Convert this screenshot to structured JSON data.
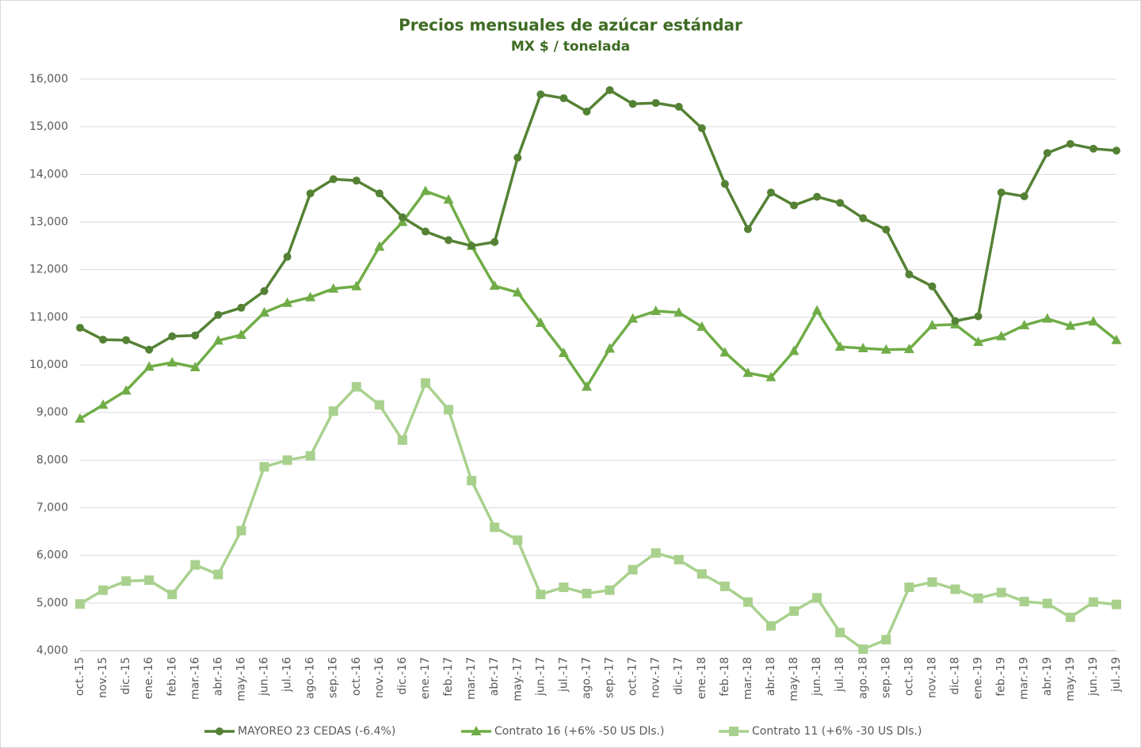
{
  "chart_data": {
    "type": "line",
    "title": "Precios mensuales de azúcar estándar",
    "subtitle": "MX $ / tonelada",
    "categories": [
      "oct.-15",
      "nov.-15",
      "dic.-15",
      "ene.-16",
      "feb.-16",
      "mar.-16",
      "abr.-16",
      "may.-16",
      "jun.-16",
      "jul.-16",
      "ago.-16",
      "sep.-16",
      "oct.-16",
      "nov.-16",
      "dic.-16",
      "ene.-17",
      "feb.-17",
      "mar.-17",
      "abr.-17",
      "may.-17",
      "jun.-17",
      "jul.-17",
      "ago.-17",
      "sep.-17",
      "oct.-17",
      "nov.-17",
      "dic.-17",
      "ene.-18",
      "feb.-18",
      "mar.-18",
      "abr.-18",
      "may.-18",
      "jun.-18",
      "jul.-18",
      "ago.-18",
      "sep.-18",
      "oct.-18",
      "nov.-18",
      "dic.-18",
      "ene.-19",
      "feb.-19",
      "mar.-19",
      "abr.-19",
      "may.-19",
      "jun.-19",
      "jul.-19"
    ],
    "series": [
      {
        "name": "MAYOREO 23 CEDAS (-6.4%)",
        "color": "#548235",
        "marker": "circle",
        "values": [
          10780,
          10530,
          10520,
          10320,
          10600,
          10620,
          11050,
          11200,
          11550,
          12270,
          13600,
          13900,
          13870,
          13600,
          13100,
          12800,
          12620,
          12500,
          12580,
          14350,
          15680,
          15600,
          15320,
          15770,
          15480,
          15500,
          15420,
          14970,
          13800,
          12850,
          13620,
          13350,
          13530,
          13400,
          13080,
          12840,
          11900,
          11650,
          10920,
          11020,
          13620,
          13540,
          14450,
          14640,
          14540,
          14500
        ]
      },
      {
        "name": "Contrato 16 (+6% -50 US Dls.)",
        "color": "#70ad47",
        "marker": "triangle",
        "values": [
          8870,
          9160,
          9460,
          9960,
          10050,
          9950,
          10510,
          10630,
          11100,
          11300,
          11420,
          11600,
          11650,
          12480,
          13000,
          13650,
          13470,
          12500,
          11660,
          11520,
          10880,
          10250,
          9540,
          10340,
          10970,
          11130,
          11100,
          10800,
          10260,
          9830,
          9740,
          10290,
          11140,
          10380,
          10350,
          10320,
          10330,
          10830,
          10850,
          10480,
          10600,
          10830,
          10970,
          10820,
          10910,
          10520
        ]
      },
      {
        "name": "Contrato 11 (+6% -30 US Dls.)",
        "color": "#a9d18e",
        "marker": "square",
        "values": [
          4980,
          5270,
          5460,
          5480,
          5180,
          5800,
          5600,
          6520,
          7860,
          8000,
          8090,
          9030,
          9540,
          9160,
          8420,
          9620,
          9060,
          7570,
          6590,
          6320,
          5180,
          5330,
          5200,
          5270,
          5700,
          6050,
          5910,
          5610,
          5350,
          5020,
          4520,
          4830,
          5110,
          4380,
          4030,
          4230,
          5330,
          5440,
          5290,
          5100,
          5220,
          5030,
          4990,
          4700,
          5020,
          4970
        ]
      }
    ],
    "ylim": [
      4000,
      16000
    ],
    "yticks": [
      {
        "value": 4000,
        "label": "4,000"
      },
      {
        "value": 5000,
        "label": "5,000"
      },
      {
        "value": 6000,
        "label": "6,000"
      },
      {
        "value": 7000,
        "label": "7,000"
      },
      {
        "value": 8000,
        "label": "8,000"
      },
      {
        "value": 9000,
        "label": "9,000"
      },
      {
        "value": 10000,
        "label": "10,000"
      },
      {
        "value": 11000,
        "label": "11,000"
      },
      {
        "value": 12000,
        "label": "12,000"
      },
      {
        "value": 13000,
        "label": "13,000"
      },
      {
        "value": 14000,
        "label": "14,000"
      },
      {
        "value": 15000,
        "label": "15,000"
      },
      {
        "value": 16000,
        "label": "16,000"
      }
    ],
    "grid": true,
    "legend": "bottom"
  }
}
